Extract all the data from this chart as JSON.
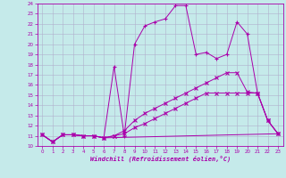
{
  "xlabel": "Windchill (Refroidissement éolien,°C)",
  "xlim": [
    -0.5,
    23.5
  ],
  "ylim": [
    10,
    24
  ],
  "xticks": [
    0,
    1,
    2,
    3,
    4,
    5,
    6,
    7,
    8,
    9,
    10,
    11,
    12,
    13,
    14,
    15,
    16,
    17,
    18,
    19,
    20,
    21,
    22,
    23
  ],
  "yticks": [
    10,
    11,
    12,
    13,
    14,
    15,
    16,
    17,
    18,
    19,
    20,
    21,
    22,
    23,
    24
  ],
  "background_color": "#c5eaea",
  "grid_color": "#b0b0cc",
  "line_color": "#aa00aa",
  "lines": [
    {
      "x": [
        0,
        1,
        2,
        3,
        4,
        5,
        6,
        7,
        8,
        9,
        10,
        11,
        12,
        13,
        14,
        15,
        16,
        17,
        18,
        19,
        20,
        21,
        22,
        23
      ],
      "y": [
        11.1,
        10.4,
        11.1,
        11.1,
        11.0,
        11.0,
        10.8,
        17.8,
        11.0,
        20.0,
        21.8,
        22.2,
        22.5,
        23.8,
        23.8,
        19.0,
        19.2,
        18.6,
        19.0,
        22.2,
        21.0,
        15.2,
        12.5,
        11.2
      ],
      "marker": "+"
    },
    {
      "x": [
        0,
        1,
        2,
        3,
        4,
        5,
        6,
        7,
        8,
        9,
        10,
        11,
        12,
        13,
        14,
        15,
        16,
        17,
        18,
        19,
        20,
        21,
        22,
        23
      ],
      "y": [
        11.1,
        10.4,
        11.1,
        11.1,
        11.0,
        11.0,
        10.8,
        11.0,
        11.5,
        12.5,
        13.2,
        13.7,
        14.2,
        14.7,
        15.2,
        15.7,
        16.2,
        16.7,
        17.2,
        17.2,
        15.3,
        15.2,
        12.5,
        11.2
      ],
      "marker": "x"
    },
    {
      "x": [
        0,
        1,
        2,
        3,
        4,
        5,
        6,
        7,
        8,
        9,
        10,
        11,
        12,
        13,
        14,
        15,
        16,
        17,
        18,
        19,
        20,
        21,
        22,
        23
      ],
      "y": [
        11.1,
        10.4,
        11.1,
        11.1,
        11.0,
        11.0,
        10.8,
        11.0,
        11.2,
        11.8,
        12.2,
        12.7,
        13.2,
        13.7,
        14.2,
        14.7,
        15.2,
        15.2,
        15.2,
        15.2,
        15.2,
        15.2,
        12.5,
        11.2
      ],
      "marker": "x"
    },
    {
      "x": [
        0,
        1,
        2,
        3,
        4,
        5,
        6,
        23
      ],
      "y": [
        11.1,
        10.4,
        11.1,
        11.1,
        11.0,
        11.0,
        10.8,
        11.2
      ],
      "marker": null
    }
  ]
}
